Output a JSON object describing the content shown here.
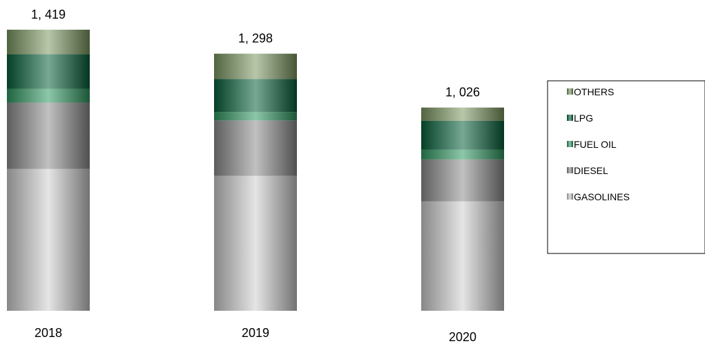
{
  "chart_data": {
    "type": "bar",
    "stacked": true,
    "categories": [
      "2018",
      "2019",
      "2020"
    ],
    "totals_labels": [
      "1, 419",
      "1, 298",
      "1, 026"
    ],
    "totals": [
      1419,
      1298,
      1026
    ],
    "series": [
      {
        "name": "GASOLINES",
        "values": [
          716,
          681,
          552
        ],
        "color": "#cfcfcf"
      },
      {
        "name": "DIESEL",
        "values": [
          335,
          280,
          212
        ],
        "color": "#8f8f8f"
      },
      {
        "name": "FUEL OIL",
        "values": [
          70,
          42,
          50
        ],
        "color": "#2f9a62"
      },
      {
        "name": "LPG",
        "values": [
          174,
          167,
          145
        ],
        "color": "#06613a"
      },
      {
        "name": "OTHERS",
        "values": [
          124,
          128,
          67
        ],
        "color": "#7d9a63"
      }
    ],
    "legend": {
      "placement": "right",
      "order": [
        "OTHERS",
        "LPG",
        "FUEL OIL",
        "DIESEL",
        "GASOLINES"
      ]
    },
    "grid": false,
    "ylim": [
      0,
      1419
    ]
  }
}
